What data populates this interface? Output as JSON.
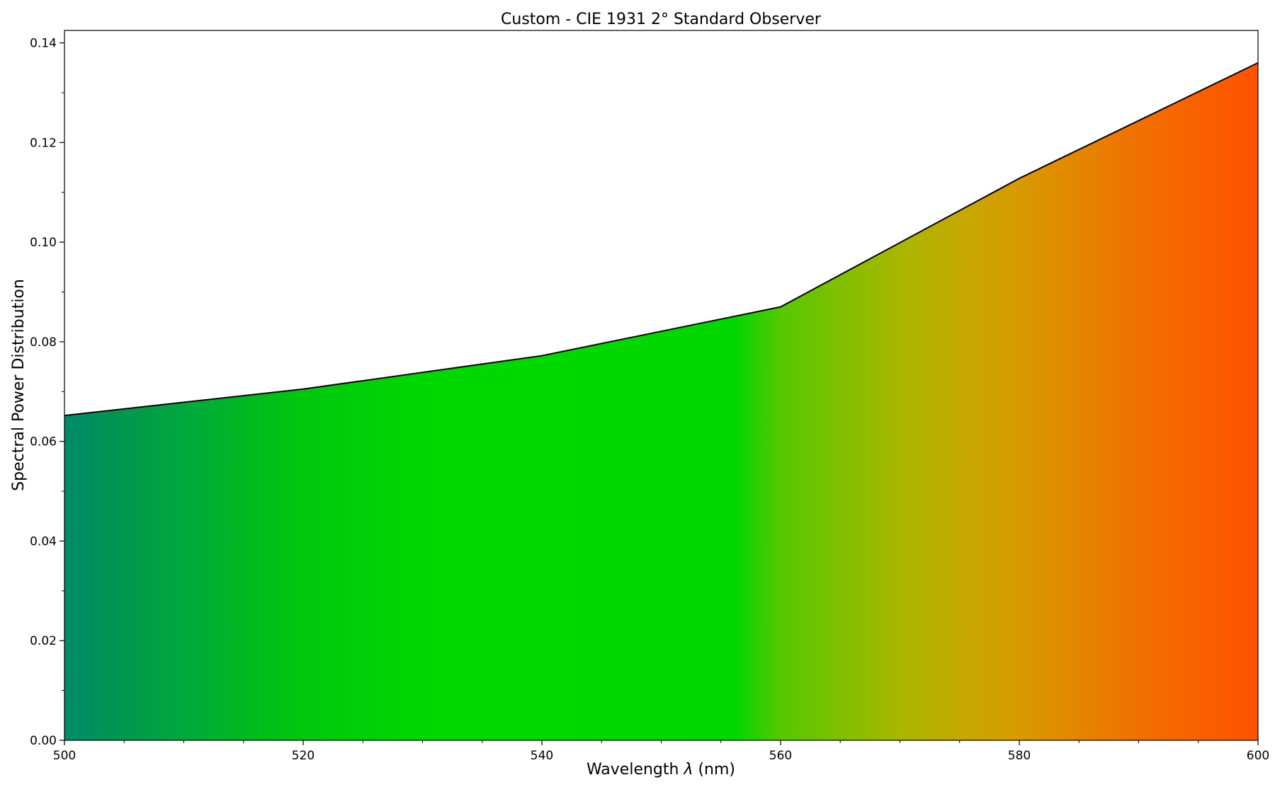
{
  "chart_data": {
    "type": "area",
    "title": "Custom - CIE 1931 2° Standard Observer",
    "xlabel_prefix": "Wavelength ",
    "xlabel_symbol": "λ",
    "xlabel_suffix": " (nm)",
    "ylabel": "Spectral Power Distribution",
    "xlim": [
      500,
      600
    ],
    "ylim": [
      0,
      0.1425
    ],
    "x_ticks": [
      500,
      520,
      540,
      560,
      580,
      600
    ],
    "x_tick_labels": [
      "500",
      "520",
      "540",
      "560",
      "580",
      "600"
    ],
    "y_ticks": [
      0,
      0.02,
      0.04,
      0.06,
      0.08,
      0.1,
      0.12,
      0.14
    ],
    "y_tick_labels": [
      "0.00",
      "0.02",
      "0.04",
      "0.06",
      "0.08",
      "0.10",
      "0.12",
      "0.14"
    ],
    "x_minor_step": 5,
    "y_minor_step": 0.01,
    "grid": false,
    "series": [
      {
        "x": [
          500,
          520,
          540,
          560,
          580,
          600
        ],
        "values": [
          0.0652,
          0.0705,
          0.0772,
          0.087,
          0.1128,
          0.136
        ],
        "line_color": "#000000"
      }
    ],
    "fill_gradient": [
      {
        "x": 500,
        "color": "#008b68"
      },
      {
        "x": 505,
        "color": "#00974d"
      },
      {
        "x": 510,
        "color": "#00a83d"
      },
      {
        "x": 515,
        "color": "#00b820"
      },
      {
        "x": 520,
        "color": "#00c70c"
      },
      {
        "x": 530,
        "color": "#00d802"
      },
      {
        "x": 540,
        "color": "#00d900"
      },
      {
        "x": 556,
        "color": "#00d700"
      },
      {
        "x": 560,
        "color": "#55c800"
      },
      {
        "x": 565,
        "color": "#80bf00"
      },
      {
        "x": 570,
        "color": "#a9b700"
      },
      {
        "x": 575,
        "color": "#c4a900"
      },
      {
        "x": 580,
        "color": "#d89a00"
      },
      {
        "x": 590,
        "color": "#f17000"
      },
      {
        "x": 600,
        "color": "#ff5200"
      }
    ]
  }
}
